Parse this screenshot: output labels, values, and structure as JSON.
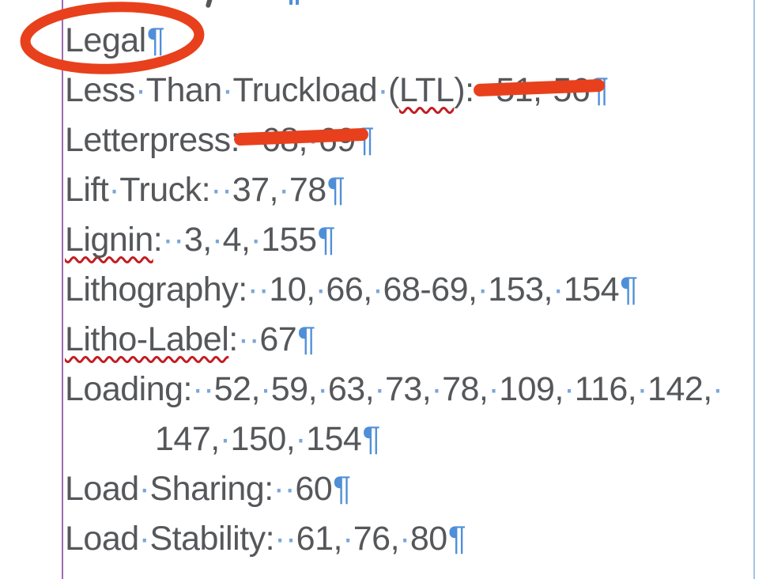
{
  "app": {
    "view": "word-processor page with formatting marks shown",
    "content_kind": "alphabetical index entries (term: page numbers)"
  },
  "colors": {
    "page_bg": "#ffffff",
    "text": "#55575a",
    "marks": "#4f8fd8",
    "space_dot": "#7aa6da",
    "squiggle": "#c21d22",
    "annotation": "#e8401c",
    "left_guide": "#a06cb0",
    "right_guide": "#a5c3de"
  },
  "document": {
    "previous_line_fragment": {
      "comma_tail": ",",
      "pilcrow_tail": "¶"
    },
    "lines": [
      {
        "indent": 0,
        "segments": [
          {
            "t": "Legal",
            "c": "w"
          },
          {
            "t": "¶",
            "c": "pm"
          }
        ]
      },
      {
        "indent": 0,
        "segments": [
          {
            "t": "Less",
            "c": "w"
          },
          {
            "t": "·",
            "c": "sp"
          },
          {
            "t": "Than",
            "c": "w"
          },
          {
            "t": "·",
            "c": "sp"
          },
          {
            "t": "Truckload",
            "c": "w"
          },
          {
            "t": "·",
            "c": "sp"
          },
          {
            "t": "(",
            "c": "w"
          },
          {
            "t": "LTL",
            "c": "w sq"
          },
          {
            "t": "):",
            "c": "w"
          },
          {
            "t": "··",
            "c": "sp"
          },
          {
            "t": "51,",
            "c": "w"
          },
          {
            "t": "·",
            "c": "sp"
          },
          {
            "t": "56",
            "c": "w"
          },
          {
            "t": "¶",
            "c": "pm"
          }
        ]
      },
      {
        "indent": 0,
        "segments": [
          {
            "t": "Letterpress:",
            "c": "w"
          },
          {
            "t": "··",
            "c": "sp"
          },
          {
            "t": "68,",
            "c": "w"
          },
          {
            "t": "·",
            "c": "sp"
          },
          {
            "t": "69",
            "c": "w"
          },
          {
            "t": "¶",
            "c": "pm"
          }
        ]
      },
      {
        "indent": 0,
        "segments": [
          {
            "t": "Lift",
            "c": "w"
          },
          {
            "t": "·",
            "c": "sp"
          },
          {
            "t": "Truck:",
            "c": "w"
          },
          {
            "t": "··",
            "c": "sp"
          },
          {
            "t": "37,",
            "c": "w"
          },
          {
            "t": "·",
            "c": "sp"
          },
          {
            "t": "78",
            "c": "w"
          },
          {
            "t": "¶",
            "c": "pm"
          }
        ]
      },
      {
        "indent": 0,
        "segments": [
          {
            "t": "Lignin",
            "c": "w sq"
          },
          {
            "t": ":",
            "c": "w"
          },
          {
            "t": "··",
            "c": "sp"
          },
          {
            "t": "3,",
            "c": "w"
          },
          {
            "t": "·",
            "c": "sp"
          },
          {
            "t": "4,",
            "c": "w"
          },
          {
            "t": "·",
            "c": "sp"
          },
          {
            "t": "155",
            "c": "w"
          },
          {
            "t": "¶",
            "c": "pm"
          }
        ]
      },
      {
        "indent": 0,
        "segments": [
          {
            "t": "Lithography:",
            "c": "w"
          },
          {
            "t": "··",
            "c": "sp"
          },
          {
            "t": "10,",
            "c": "w"
          },
          {
            "t": "·",
            "c": "sp"
          },
          {
            "t": "66,",
            "c": "w"
          },
          {
            "t": "·",
            "c": "sp"
          },
          {
            "t": "68-69,",
            "c": "w"
          },
          {
            "t": "·",
            "c": "sp"
          },
          {
            "t": "153,",
            "c": "w"
          },
          {
            "t": "·",
            "c": "sp"
          },
          {
            "t": "154",
            "c": "w"
          },
          {
            "t": "¶",
            "c": "pm"
          }
        ]
      },
      {
        "indent": 0,
        "segments": [
          {
            "t": "Litho-Label",
            "c": "w sq"
          },
          {
            "t": ":",
            "c": "w"
          },
          {
            "t": "··",
            "c": "sp"
          },
          {
            "t": "67",
            "c": "w"
          },
          {
            "t": "¶",
            "c": "pm"
          }
        ]
      },
      {
        "indent": 0,
        "segments": [
          {
            "t": "Loading:",
            "c": "w"
          },
          {
            "t": "··",
            "c": "sp"
          },
          {
            "t": "52,",
            "c": "w"
          },
          {
            "t": "·",
            "c": "sp"
          },
          {
            "t": "59,",
            "c": "w"
          },
          {
            "t": "·",
            "c": "sp"
          },
          {
            "t": "63,",
            "c": "w"
          },
          {
            "t": "·",
            "c": "sp"
          },
          {
            "t": "73,",
            "c": "w"
          },
          {
            "t": "·",
            "c": "sp"
          },
          {
            "t": "78,",
            "c": "w"
          },
          {
            "t": "·",
            "c": "sp"
          },
          {
            "t": "109,",
            "c": "w"
          },
          {
            "t": "·",
            "c": "sp"
          },
          {
            "t": "116,",
            "c": "w"
          },
          {
            "t": "·",
            "c": "sp"
          },
          {
            "t": "142,",
            "c": "w"
          },
          {
            "t": "·",
            "c": "sp"
          }
        ]
      },
      {
        "indent": 114,
        "segments": [
          {
            "t": "147,",
            "c": "w"
          },
          {
            "t": "·",
            "c": "sp"
          },
          {
            "t": "150,",
            "c": "w"
          },
          {
            "t": "·",
            "c": "sp"
          },
          {
            "t": "154",
            "c": "w"
          },
          {
            "t": "¶",
            "c": "pm"
          }
        ]
      },
      {
        "indent": 0,
        "segments": [
          {
            "t": "Load",
            "c": "w"
          },
          {
            "t": "·",
            "c": "sp"
          },
          {
            "t": "Sharing:",
            "c": "w"
          },
          {
            "t": "··",
            "c": "sp"
          },
          {
            "t": "60",
            "c": "w"
          },
          {
            "t": "¶",
            "c": "pm"
          }
        ]
      },
      {
        "indent": 0,
        "segments": [
          {
            "t": "Load",
            "c": "w"
          },
          {
            "t": "·",
            "c": "sp"
          },
          {
            "t": "Stability:",
            "c": "w"
          },
          {
            "t": "··",
            "c": "sp"
          },
          {
            "t": "61,",
            "c": "w"
          },
          {
            "t": "·",
            "c": "sp"
          },
          {
            "t": "76,",
            "c": "w"
          },
          {
            "t": "·",
            "c": "sp"
          },
          {
            "t": "80",
            "c": "w"
          },
          {
            "t": "¶",
            "c": "pm"
          }
        ]
      }
    ],
    "annotations": {
      "circle": {
        "shape": "ellipse",
        "target_text": "Legal"
      },
      "strike_1": {
        "shape": "bar",
        "target_text": "51, 56"
      },
      "strike_2": {
        "shape": "bar",
        "target_text": "68, 69"
      }
    }
  }
}
